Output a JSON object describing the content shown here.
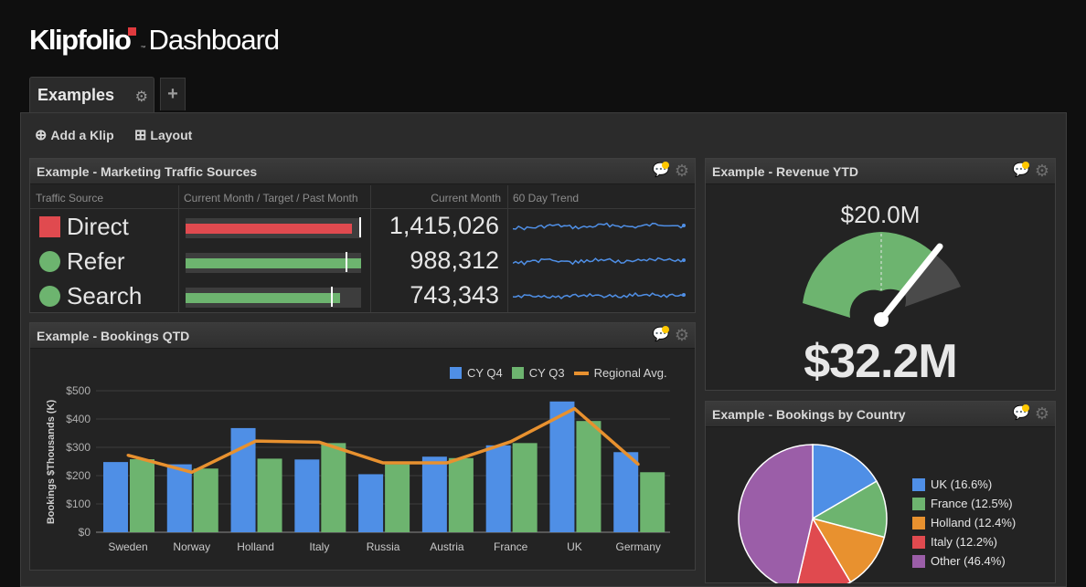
{
  "brand": {
    "name": "Klipfolio",
    "tm": "™",
    "product": "Dashboard"
  },
  "tabs": [
    {
      "label": "Examples"
    }
  ],
  "toolbar": {
    "add_klip": "Add a Klip",
    "layout": "Layout"
  },
  "traffic": {
    "title": "Example - Marketing Traffic Sources",
    "headers": {
      "source": "Traffic Source",
      "bars": "Current Month / Target / Past Month",
      "current": "Current Month",
      "trend": "60 Day Trend"
    },
    "rows": [
      {
        "label": "Direct",
        "value": "1,415,026",
        "color": "#e04a4f",
        "shape": "square",
        "fill": 0.95,
        "target": 0.99
      },
      {
        "label": "Refer",
        "value": "988,312",
        "color": "#6db46f",
        "shape": "circle",
        "fill": 1.0,
        "target": 0.91
      },
      {
        "label": "Search",
        "value": "743,343",
        "color": "#6db46f",
        "shape": "circle",
        "fill": 0.88,
        "target": 0.83
      }
    ]
  },
  "revenue": {
    "title": "Example - Revenue YTD",
    "target_label": "$20.0M",
    "value_label": "$32.2M",
    "colors": {
      "target_band": "#6db46f",
      "over_band": "#4a4a4a",
      "needle": "#ffffff"
    }
  },
  "bookings": {
    "title": "Example - Bookings QTD",
    "chart_data": {
      "type": "bar",
      "categories": [
        "Sweden",
        "Norway",
        "Holland",
        "Italy",
        "Russia",
        "Austria",
        "France",
        "UK",
        "Germany"
      ],
      "series": [
        {
          "name": "CY Q4",
          "type": "bar",
          "color": "#4f8fe6",
          "values": [
            248,
            240,
            368,
            257,
            205,
            267,
            307,
            462,
            283
          ]
        },
        {
          "name": "CY Q3",
          "type": "bar",
          "color": "#6db46f",
          "values": [
            258,
            225,
            260,
            315,
            240,
            262,
            315,
            393,
            212
          ]
        },
        {
          "name": "Regional Avg.",
          "type": "line",
          "color": "#e8912f",
          "values": [
            272,
            212,
            322,
            318,
            245,
            245,
            320,
            437,
            240
          ]
        }
      ],
      "title": "",
      "xlabel": "",
      "ylabel": "Bookings $Thousands (K)",
      "ylim": [
        0,
        500
      ],
      "yticks": [
        "$0",
        "$100",
        "$200",
        "$300",
        "$400",
        "$500"
      ],
      "legend": "top-right",
      "grid": true
    }
  },
  "country": {
    "title": "Example - Bookings by Country",
    "chart_data": {
      "type": "pie",
      "labels": [
        "UK (16.6%)",
        "France (12.5%)",
        "Holland (12.4%)",
        "Italy (12.2%)",
        "Other (46.4%)"
      ],
      "values": [
        16.6,
        12.5,
        12.4,
        12.2,
        46.4
      ],
      "colors": [
        "#4f8fe6",
        "#6db46f",
        "#e8912f",
        "#e04a4f",
        "#9b5ea8"
      ],
      "legend": "right"
    }
  }
}
